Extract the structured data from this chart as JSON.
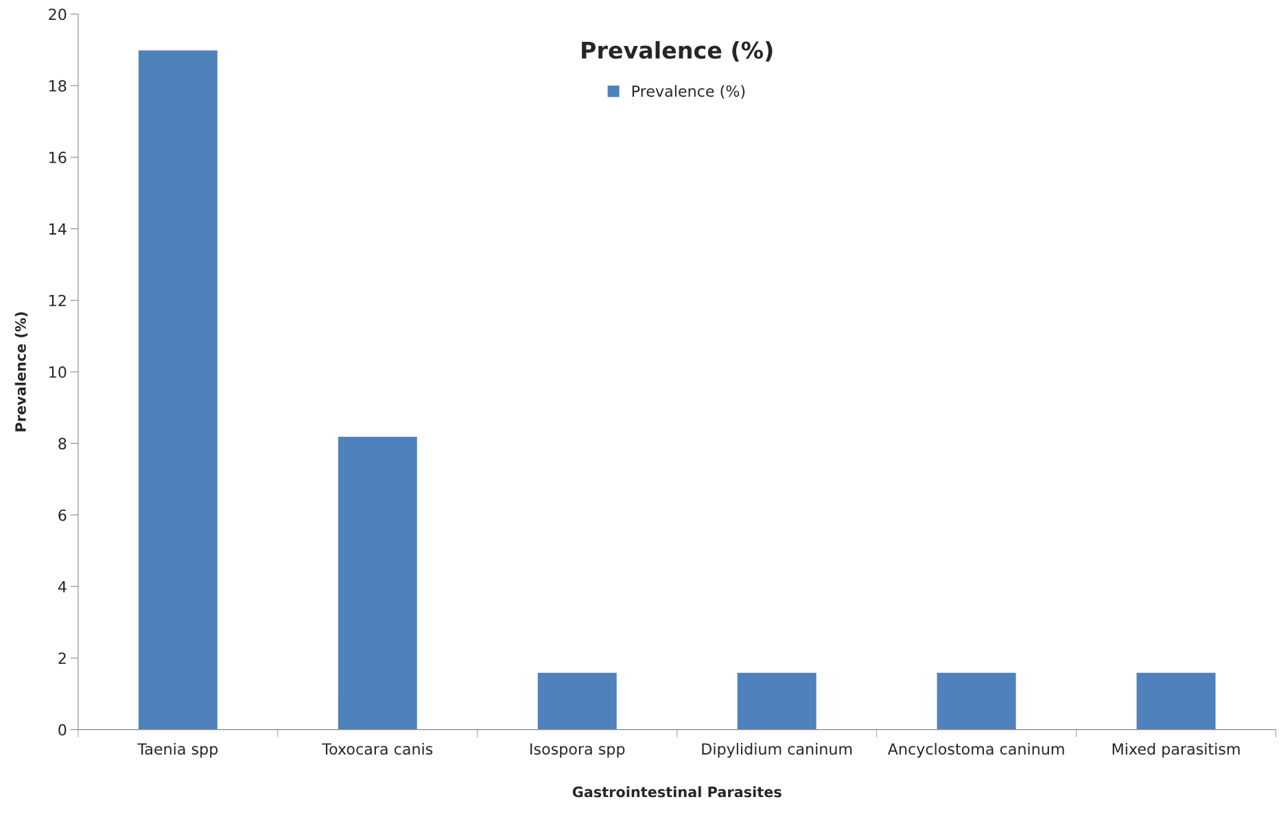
{
  "chart_data": {
    "type": "bar",
    "title": "Prevalence (%)",
    "xlabel": "Gastrointestinal Parasites",
    "ylabel": "Prevalence (%)",
    "categories": [
      "Taenia spp",
      "Toxocara canis",
      "Isospora spp",
      "Dipylidium caninum",
      "Ancyclostoma caninum",
      "Mixed parasitism"
    ],
    "series": [
      {
        "name": "Prevalence (%)",
        "color": "#4f81bd",
        "values": [
          19,
          8.2,
          1.6,
          1.6,
          1.6,
          1.6
        ]
      }
    ],
    "ylim": [
      0,
      20
    ],
    "yticks": [
      0,
      2,
      4,
      6,
      8,
      10,
      12,
      14,
      16,
      18,
      20
    ],
    "grid": false,
    "legend": "top"
  }
}
